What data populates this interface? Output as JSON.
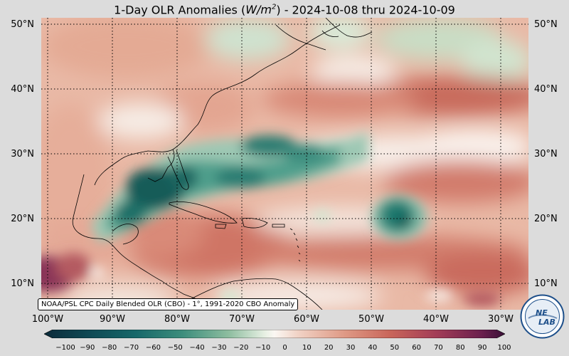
{
  "title": {
    "prefix": "1-Day OLR Anomalies (",
    "unit_base": "W/m",
    "unit_exp": "2",
    "suffix": ") - 2024-10-08 thru 2024-10-09"
  },
  "map": {
    "lat_labels": [
      "50°N",
      "40°N",
      "30°N",
      "20°N",
      "10°N"
    ],
    "lon_labels": [
      "100°W",
      "90°W",
      "80°W",
      "70°W",
      "60°W",
      "50°W",
      "40°W",
      "30°W"
    ],
    "gridlines": "dotted",
    "colormap": "diverging teal (negative) to red-purple (positive)",
    "colors": {
      "strong_negative": "#0c4747",
      "negative": "#2a8a7a",
      "weak_negative": "#a9cdb0",
      "neutral": "#faf4ef",
      "weak_positive": "#e8b7a3",
      "positive": "#cf7565",
      "strong_positive": "#7d2a56"
    }
  },
  "source_label": "NOAA/PSL CPC Daily Blended OLR (CBO) - 1°, 1991-2020 CBO Anomaly",
  "colorbar": {
    "ticks": [
      "−100",
      "−90",
      "−80",
      "−70",
      "−60",
      "−50",
      "−40",
      "−30",
      "−20",
      "−10",
      "0",
      "10",
      "20",
      "30",
      "40",
      "50",
      "60",
      "70",
      "80",
      "90",
      "100"
    ]
  },
  "logo": {
    "text_top": "NE",
    "text_bottom": "LAB",
    "icon": "noaa-nexlab-logo"
  }
}
